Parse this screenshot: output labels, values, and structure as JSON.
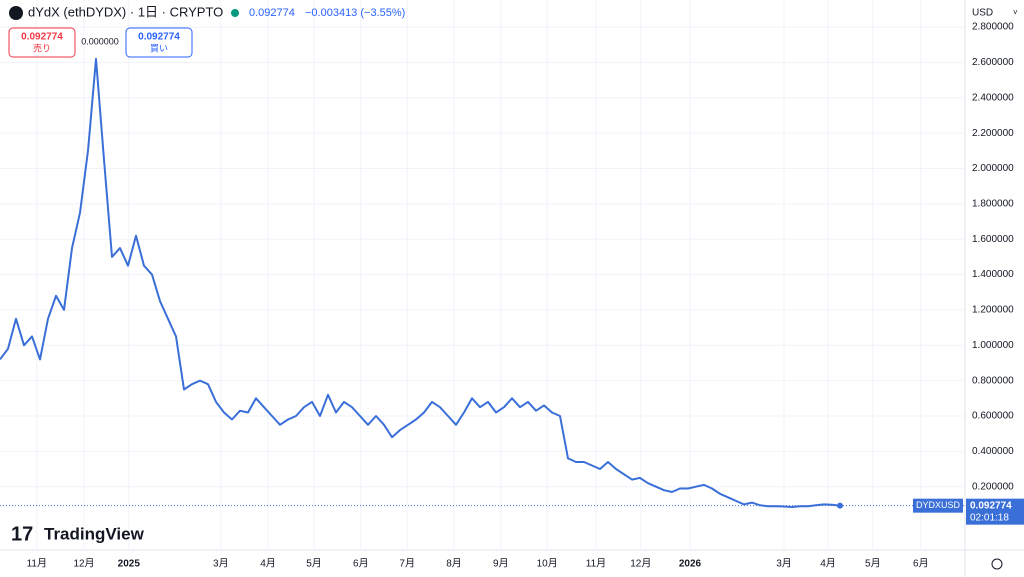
{
  "header": {
    "symbol": "dYdX (ethDYDX) · 1日 · CRYPTO",
    "price": "0.092774",
    "change": "−0.003413 (−3.55%)",
    "sell_price": "0.092774",
    "sell_label": "売り",
    "spread": "0.000000",
    "buy_price": "0.092774",
    "buy_label": "買い",
    "currency": "USD",
    "countdown": "02:01:18",
    "brand": "TradingView"
  },
  "chart_data": {
    "type": "line",
    "series": [
      {
        "name": "DYDXUSD",
        "color": "#3a6fd8",
        "values": [
          0.92,
          0.98,
          1.15,
          1.0,
          1.05,
          0.92,
          1.15,
          1.28,
          1.2,
          1.55,
          1.75,
          2.1,
          2.62,
          2.05,
          1.5,
          1.55,
          1.45,
          1.62,
          1.45,
          1.4,
          1.25,
          1.15,
          1.05,
          0.75,
          0.78,
          0.8,
          0.78,
          0.68,
          0.62,
          0.58,
          0.63,
          0.62,
          0.7,
          0.65,
          0.6,
          0.55,
          0.58,
          0.6,
          0.65,
          0.68,
          0.6,
          0.72,
          0.62,
          0.68,
          0.65,
          0.6,
          0.55,
          0.6,
          0.55,
          0.48,
          0.52,
          0.55,
          0.58,
          0.62,
          0.68,
          0.65,
          0.6,
          0.55,
          0.62,
          0.7,
          0.65,
          0.68,
          0.62,
          0.65,
          0.7,
          0.65,
          0.68,
          0.63,
          0.66,
          0.62,
          0.6,
          0.36,
          0.34,
          0.34,
          0.32,
          0.3,
          0.34,
          0.3,
          0.27,
          0.24,
          0.25,
          0.22,
          0.2,
          0.18,
          0.17,
          0.19,
          0.19,
          0.2,
          0.21,
          0.19,
          0.16,
          0.14,
          0.12,
          0.1,
          0.11,
          0.095,
          0.09,
          0.09,
          0.088,
          0.085,
          0.09,
          0.09,
          0.095,
          0.1,
          0.098,
          0.092774
        ]
      }
    ],
    "xlim": [
      0,
      120
    ],
    "xticks": [
      {
        "value": 4.6,
        "label": "11月"
      },
      {
        "value": 10.5,
        "label": "12月"
      },
      {
        "value": 16.1,
        "label": "2025"
      },
      {
        "value": 27.6,
        "label": "3月"
      },
      {
        "value": 33.5,
        "label": "4月"
      },
      {
        "value": 39.25,
        "label": "5月"
      },
      {
        "value": 45.1,
        "label": "6月"
      },
      {
        "value": 50.9,
        "label": "7月"
      },
      {
        "value": 56.75,
        "label": "8月"
      },
      {
        "value": 62.6,
        "label": "9月"
      },
      {
        "value": 68.4,
        "label": "10月"
      },
      {
        "value": 74.5,
        "label": "11月"
      },
      {
        "value": 80.1,
        "label": "12月"
      },
      {
        "value": 86.25,
        "label": "2026"
      },
      {
        "value": 98,
        "label": "3月"
      },
      {
        "value": 103.5,
        "label": "4月"
      },
      {
        "value": 109.1,
        "label": "5月"
      },
      {
        "value": 115.1,
        "label": "6月"
      }
    ],
    "ylim": [
      -0.158,
      2.84
    ],
    "yticks": [
      {
        "value": 0.2,
        "label": "0.200000"
      },
      {
        "value": 0.4,
        "label": "0.400000"
      },
      {
        "value": 0.6,
        "label": "0.600000"
      },
      {
        "value": 0.8,
        "label": "0.800000"
      },
      {
        "value": 1.0,
        "label": "1.000000"
      },
      {
        "value": 1.2,
        "label": "1.200000"
      },
      {
        "value": 1.4,
        "label": "1.400000"
      },
      {
        "value": 1.6,
        "label": "1.600000"
      },
      {
        "value": 1.8,
        "label": "1.800000"
      },
      {
        "value": 2.0,
        "label": "2.000000"
      },
      {
        "value": 2.2,
        "label": "2.200000"
      },
      {
        "value": 2.4,
        "label": "2.400000"
      },
      {
        "value": 2.6,
        "label": "2.600000"
      },
      {
        "value": 2.8,
        "label": "2.800000"
      }
    ],
    "grid": true
  }
}
